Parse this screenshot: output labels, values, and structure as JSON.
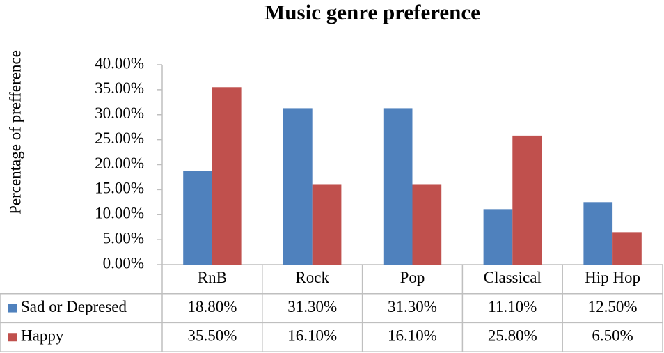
{
  "chart_data": {
    "type": "bar",
    "title": "Music genre preference",
    "y_label": "Percentage of prefference",
    "categories": [
      "RnB",
      "Rock",
      "Pop",
      "Classical",
      "Hip Hop"
    ],
    "series": [
      {
        "name": "Sad or Depresed",
        "color": "#4f81bd",
        "values": [
          18.8,
          31.3,
          31.3,
          11.1,
          12.5
        ],
        "value_labels": [
          "18.80%",
          "31.30%",
          "31.30%",
          "11.10%",
          "12.50%"
        ]
      },
      {
        "name": "Happy",
        "color": "#c0504d",
        "values": [
          35.5,
          16.1,
          16.1,
          25.8,
          6.5
        ],
        "value_labels": [
          "35.50%",
          "16.10%",
          "16.10%",
          "25.80%",
          "6.50%"
        ]
      }
    ],
    "ylim": [
      0,
      40
    ],
    "yticks": [
      {
        "value": 0,
        "label": "0.00%"
      },
      {
        "value": 5,
        "label": "5.00%"
      },
      {
        "value": 10,
        "label": "10.00%"
      },
      {
        "value": 15,
        "label": "15.00%"
      },
      {
        "value": 20,
        "label": "20.00%"
      },
      {
        "value": 25,
        "label": "25.00%"
      },
      {
        "value": 30,
        "label": "30.00%"
      },
      {
        "value": 35,
        "label": "35.00%"
      },
      {
        "value": 40,
        "label": "40.00%"
      }
    ],
    "grid": false,
    "legend": "table"
  }
}
